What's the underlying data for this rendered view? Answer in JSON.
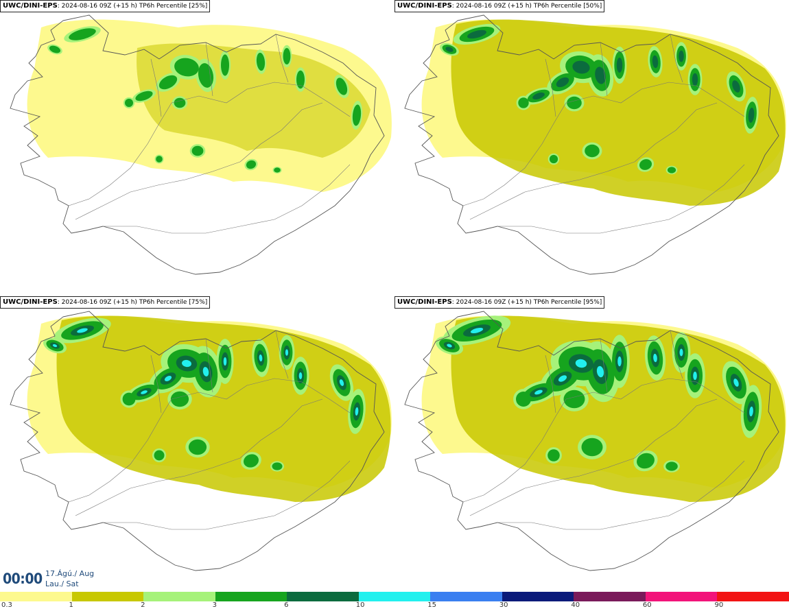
{
  "panels": [
    {
      "model": "UWC/DINI-EPS",
      "run": "2024-08-16 09Z",
      "lead": "(+15 h)",
      "field": "TP6h Percentile [25%]"
    },
    {
      "model": "UWC/DINI-EPS",
      "run": "2024-08-16 09Z",
      "lead": "(+15 h)",
      "field": "TP6h Percentile [50%]"
    },
    {
      "model": "UWC/DINI-EPS",
      "run": "2024-08-16 09Z",
      "lead": "(+15 h)",
      "field": "TP6h Percentile [75%]"
    },
    {
      "model": "UWC/DINI-EPS",
      "run": "2024-08-16 09Z",
      "lead": "(+15 h)",
      "field": "TP6h Percentile [95%]"
    }
  ],
  "valid_time": {
    "time": "00:00",
    "date": "17.Ágú./ Aug",
    "day": "Lau./ Sat"
  },
  "legend": {
    "levels": [
      "0.3",
      "1",
      "2",
      "3",
      "6",
      "10",
      "15",
      "30",
      "40",
      "60",
      "90"
    ],
    "colors": [
      "#fdf98e",
      "#c8c800",
      "#a6f27a",
      "#16a41e",
      "#0b6b3e",
      "#22f0ee",
      "#3a7ff0",
      "#0a1a7a",
      "#7a1a5a",
      "#f2147a",
      "#f21414"
    ]
  },
  "colors": {
    "light_yellow": "#fdf98e",
    "olive": "#c8c800",
    "light_green": "#a6f27a",
    "green": "#16a41e",
    "dark_green": "#0b6b3e",
    "cyan": "#22f0ee",
    "outline": "#555555"
  }
}
